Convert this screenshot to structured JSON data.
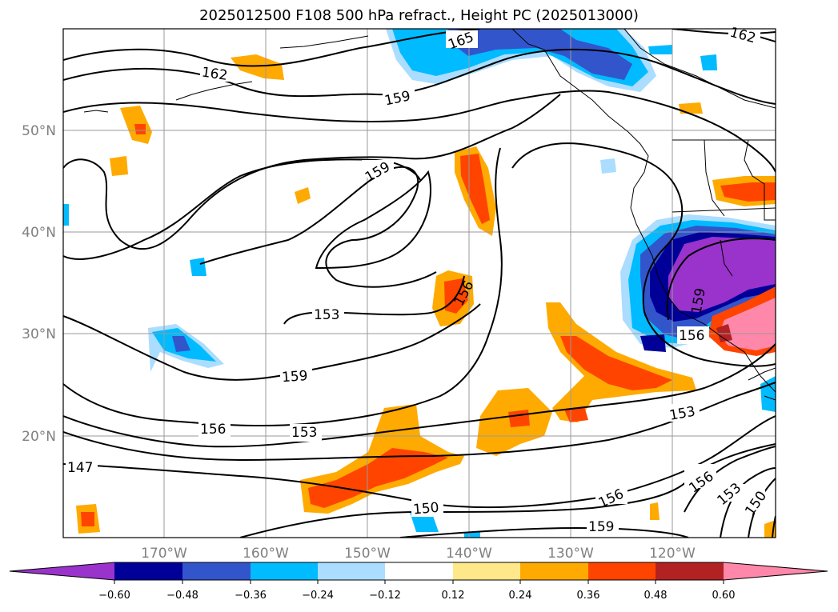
{
  "title": "2025012500 F108 500 hPa refract., Height PC (2025013000)",
  "lon_ticks": [
    "170°W",
    "160°W",
    "150°W",
    "140°W",
    "130°W",
    "120°W"
  ],
  "lat_ticks": [
    "50°N",
    "40°N",
    "30°N",
    "20°N"
  ],
  "contour_labels": [
    "165",
    "162",
    "162",
    "159",
    "159",
    "156",
    "153",
    "159",
    "156",
    "153",
    "147",
    "150",
    "153",
    "156",
    "150",
    "153",
    "156",
    "159",
    "159",
    "156"
  ],
  "colorbar": {
    "ticks": [
      "−0.60",
      "−0.48",
      "−0.36",
      "−0.24",
      "−0.12",
      "0.12",
      "0.24",
      "0.36",
      "0.48",
      "0.60"
    ],
    "colors": [
      "#9933cc",
      "#000099",
      "#3355cc",
      "#00bbff",
      "#aaddff",
      "#ffffff",
      "#ffe88a",
      "#ffaa00",
      "#ff4400",
      "#b22222",
      "#ff88aa"
    ]
  },
  "colors": {
    "shade_neg_strong": "#9933cc",
    "shade_neg": "#00bbff",
    "shade_pos": "#ffaa00",
    "shade_pos_strong": "#ff4400",
    "contour": "#000000",
    "grid": "#9a9a9a"
  }
}
